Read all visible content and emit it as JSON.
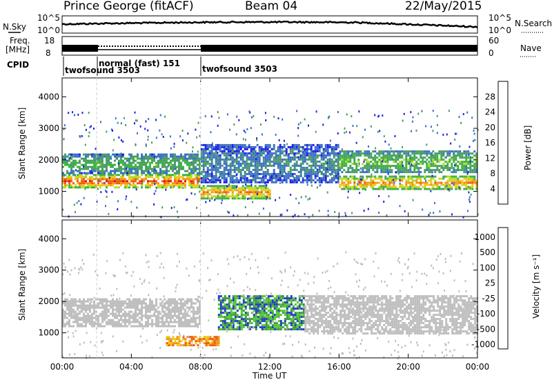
{
  "header": {
    "station": "Prince George (fitACF)",
    "beam": "Beam 04",
    "date": "22/May/2015"
  },
  "panels": {
    "sky": {
      "left_label": "N.Sky",
      "right_label": "N.Search",
      "left_ticks": [
        "10^5",
        "10^0"
      ],
      "right_ticks": [
        "10^5",
        "10^0"
      ]
    },
    "freq": {
      "left_label_1": "Freq.",
      "left_label_2": "[MHz]",
      "right_label": "Nave",
      "left_ticks": [
        "18",
        "8"
      ],
      "right_ticks": [
        "60",
        "0"
      ]
    },
    "cpid": {
      "label": "CPID",
      "modes": [
        "twofsound 3503",
        "normal (fast) 151",
        "twofsound 3503"
      ]
    }
  },
  "colors": {
    "power": [
      "#1e1ee6",
      "#3b6fc8",
      "#4a9a6a",
      "#3cb43c",
      "#b4dc28",
      "#f0c81e",
      "#f09614",
      "#f05a14",
      "#e61414"
    ],
    "velocity": [
      "#e61414",
      "#f05a14",
      "#f09614",
      "#f0c81e",
      "#bebebe",
      "#bebebe",
      "#50c828",
      "#3c9646",
      "#1e3cc8"
    ],
    "ground_scatter": "#aaaaaa"
  },
  "chart_data": [
    {
      "type": "heatmap",
      "name": "power",
      "xlabel": "",
      "ylabel": "Slant Range [km]",
      "x_ticks": [
        "00:00",
        "04:00",
        "08:00",
        "12:00",
        "16:00",
        "20:00",
        "00:00"
      ],
      "y_ticks": [
        "1000",
        "2000",
        "3000",
        "4000"
      ],
      "ylim": [
        200,
        4600
      ],
      "colorbar_label": "Power [dB]",
      "colorbar_ticks": [
        "4",
        "8",
        "12",
        "16",
        "20",
        "24",
        "28"
      ],
      "colorbar_range": [
        0,
        32
      ],
      "bands": [
        {
          "t": [
            0,
            8
          ],
          "r": [
            1150,
            1550
          ],
          "level": 28
        },
        {
          "t": [
            0,
            8
          ],
          "r": [
            1600,
            2200
          ],
          "level": 12
        },
        {
          "t": [
            8,
            12
          ],
          "r": [
            800,
            1200
          ],
          "level": 24
        },
        {
          "t": [
            8,
            16
          ],
          "r": [
            1300,
            2500
          ],
          "level": 8
        },
        {
          "t": [
            16,
            24
          ],
          "r": [
            1100,
            1500
          ],
          "level": 24
        },
        {
          "t": [
            16,
            24
          ],
          "r": [
            1600,
            2300
          ],
          "level": 14
        }
      ]
    },
    {
      "type": "heatmap",
      "name": "velocity",
      "xlabel": "Time UT",
      "ylabel": "Slant Range [km]",
      "x_ticks": [
        "00:00",
        "04:00",
        "08:00",
        "12:00",
        "16:00",
        "20:00",
        "00:00"
      ],
      "y_ticks": [
        "1000",
        "2000",
        "3000",
        "4000"
      ],
      "ylim": [
        200,
        4600
      ],
      "colorbar_label": "Velocity [m s⁻¹]",
      "colorbar_ticks": [
        "1000",
        "500",
        "100",
        "25",
        "-25",
        "-100",
        "-500",
        "-1000"
      ],
      "bands": [
        {
          "t": [
            0,
            8
          ],
          "r": [
            1200,
            2100
          ],
          "level": 0
        },
        {
          "t": [
            6,
            9
          ],
          "r": [
            600,
            900
          ],
          "level": -100
        },
        {
          "t": [
            9,
            14
          ],
          "r": [
            1100,
            2200
          ],
          "level": 100
        },
        {
          "t": [
            14,
            24
          ],
          "r": [
            1000,
            2200
          ],
          "level": 0
        }
      ]
    }
  ],
  "axes": {
    "time_label": "Time UT",
    "y_label": "Slant Range [km]"
  }
}
